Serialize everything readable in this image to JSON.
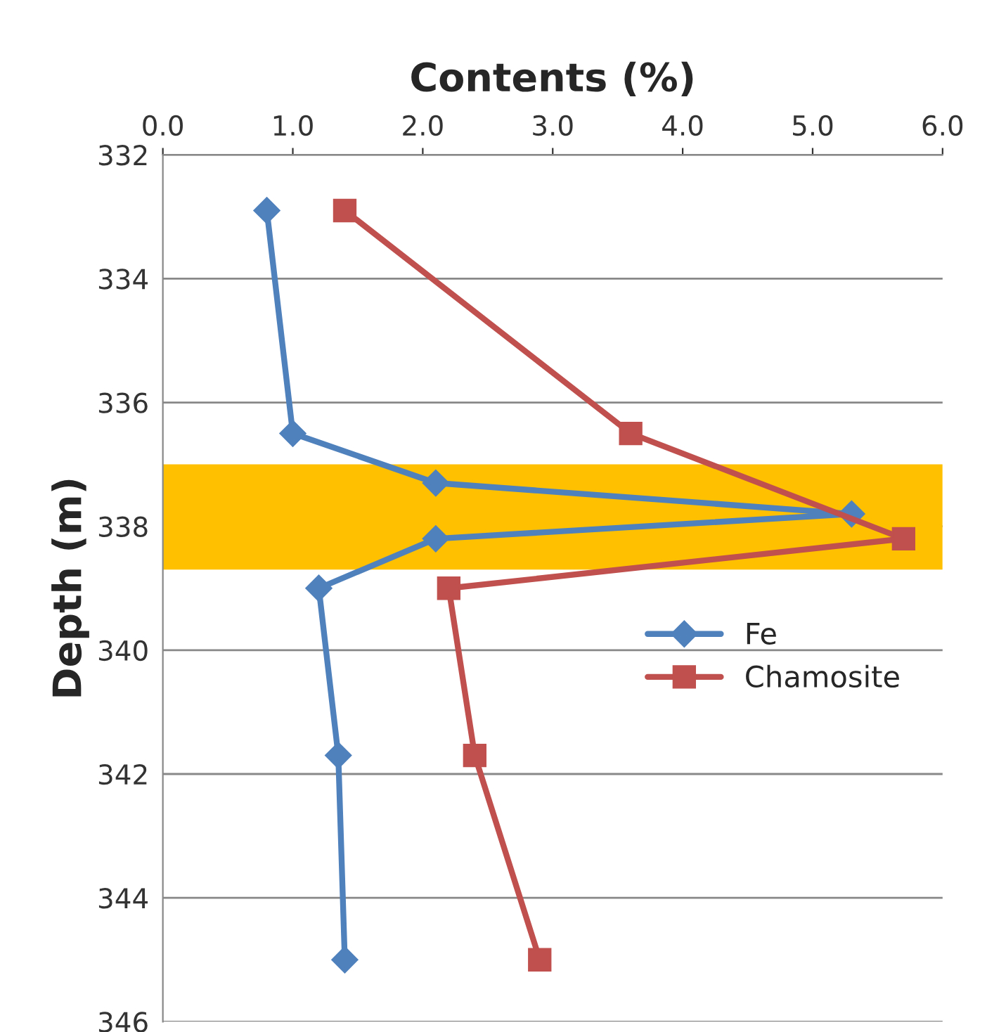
{
  "chart_data": {
    "type": "line",
    "xlabel": "Contents (%)",
    "ylabel": "Depth (m)",
    "xlim": [
      0,
      6
    ],
    "xticks": [
      {
        "value": 0,
        "label": "0.0"
      },
      {
        "value": 1,
        "label": "1.0"
      },
      {
        "value": 2,
        "label": "2.0"
      },
      {
        "value": 3,
        "label": "3.0"
      },
      {
        "value": 4,
        "label": "4.0"
      },
      {
        "value": 5,
        "label": "5.0"
      },
      {
        "value": 6,
        "label": "6.0"
      }
    ],
    "ylim": [
      346,
      332
    ],
    "yticks": [
      332,
      334,
      336,
      338,
      340,
      342,
      344,
      346
    ],
    "grid": "y",
    "legend": "right",
    "bands": [
      {
        "axis": "y",
        "from": 337.0,
        "to": 338.7,
        "color": "#ffc000"
      }
    ],
    "series": [
      {
        "name": "Fe",
        "color": "#4f81bd",
        "marker": "diamond",
        "x": [
          0.8,
          1.0,
          2.1,
          5.3,
          2.1,
          1.2,
          1.35,
          1.4
        ],
        "values": [
          332.9,
          336.5,
          337.3,
          337.8,
          338.2,
          339.0,
          341.7,
          345.0
        ]
      },
      {
        "name": "Chamosite",
        "color": "#c0504d",
        "marker": "square",
        "x": [
          1.4,
          3.6,
          5.7,
          2.2,
          2.4,
          2.9
        ],
        "values": [
          332.9,
          336.5,
          338.2,
          339.0,
          341.7,
          345.0
        ]
      }
    ]
  }
}
